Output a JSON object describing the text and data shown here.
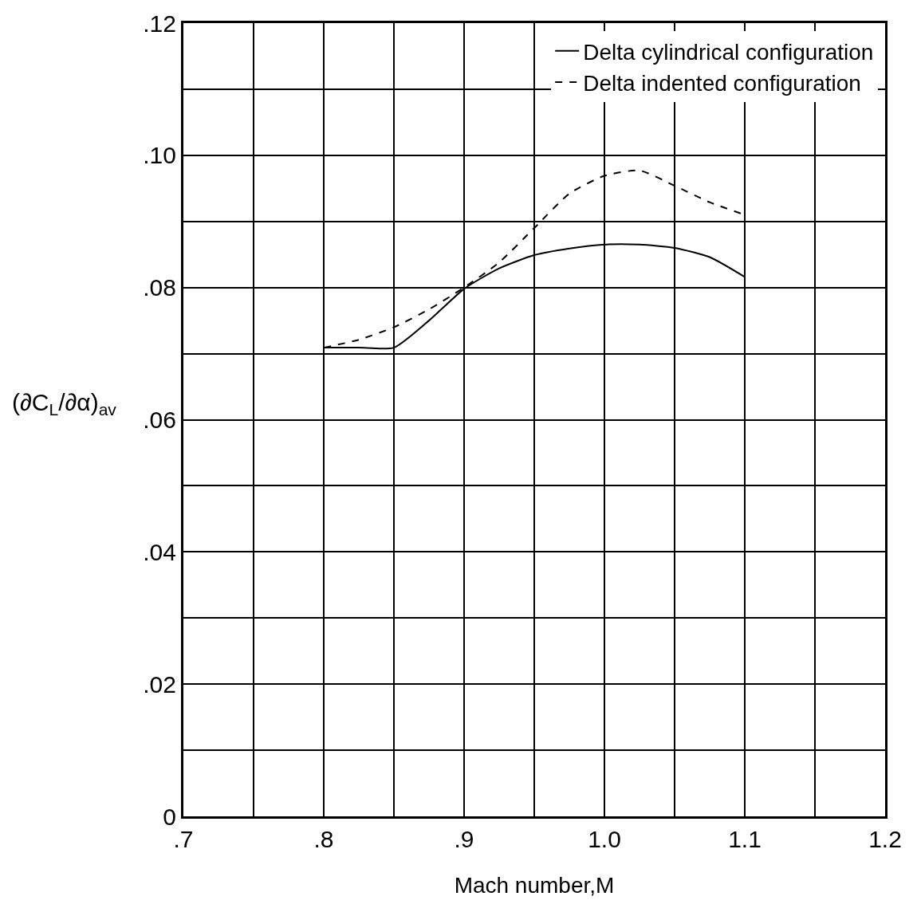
{
  "chart_data": {
    "type": "line",
    "xlabel": "Mach number,M",
    "ylabel": "(∂C$_{L}$/∂α)$_{av}$",
    "xlim": [
      0.7,
      1.2
    ],
    "xticks": [
      {
        "value": 0.7,
        "label": ".7"
      },
      {
        "value": 0.75,
        "label": null
      },
      {
        "value": 0.8,
        "label": ".8"
      },
      {
        "value": 0.85,
        "label": null
      },
      {
        "value": 0.9,
        "label": ".9"
      },
      {
        "value": 0.95,
        "label": null
      },
      {
        "value": 1.0,
        "label": "1.0"
      },
      {
        "value": 1.05,
        "label": null
      },
      {
        "value": 1.1,
        "label": "1.1"
      },
      {
        "value": 1.15,
        "label": null
      },
      {
        "value": 1.2,
        "label": "1.2"
      }
    ],
    "ylim": [
      0,
      0.12
    ],
    "yticks": [
      0,
      {
        "value": 0.01,
        "label": null
      },
      {
        "value": 0.02,
        "label": ".02"
      },
      {
        "value": 0.03,
        "label": null
      },
      {
        "value": 0.04,
        "label": ".04"
      },
      {
        "value": 0.05,
        "label": null
      },
      {
        "value": 0.06,
        "label": ".06"
      },
      {
        "value": 0.07,
        "label": null
      },
      {
        "value": 0.08,
        "label": ".08"
      },
      {
        "value": 0.09,
        "label": null
      },
      {
        "value": 0.1,
        "label": ".10"
      },
      {
        "value": 0.11,
        "label": null
      },
      {
        "value": 0.12,
        "label": ".12"
      }
    ],
    "x": [
      0.8,
      0.825,
      0.85,
      0.875,
      0.9,
      0.925,
      0.95,
      0.975,
      1.0,
      1.025,
      1.05,
      1.075,
      1.1
    ],
    "series": [
      {
        "name": "Delta cylindrical configuration",
        "color": "#000000",
        "line_style": "solid",
        "values": [
          0.0709,
          0.0709,
          0.0709,
          0.075,
          0.0798,
          0.0829,
          0.0849,
          0.0859,
          0.0865,
          0.0865,
          0.086,
          0.0846,
          0.0816
        ]
      },
      {
        "name": "Delta indented configuration",
        "color": "#000000",
        "line_style": "dashed",
        "values": [
          0.0709,
          0.0721,
          0.074,
          0.0767,
          0.08,
          0.0838,
          0.089,
          0.0942,
          0.0969,
          0.0977,
          0.0954,
          0.0929,
          0.091
        ]
      }
    ],
    "grid": true,
    "legend": "top right",
    "marker": "none"
  }
}
